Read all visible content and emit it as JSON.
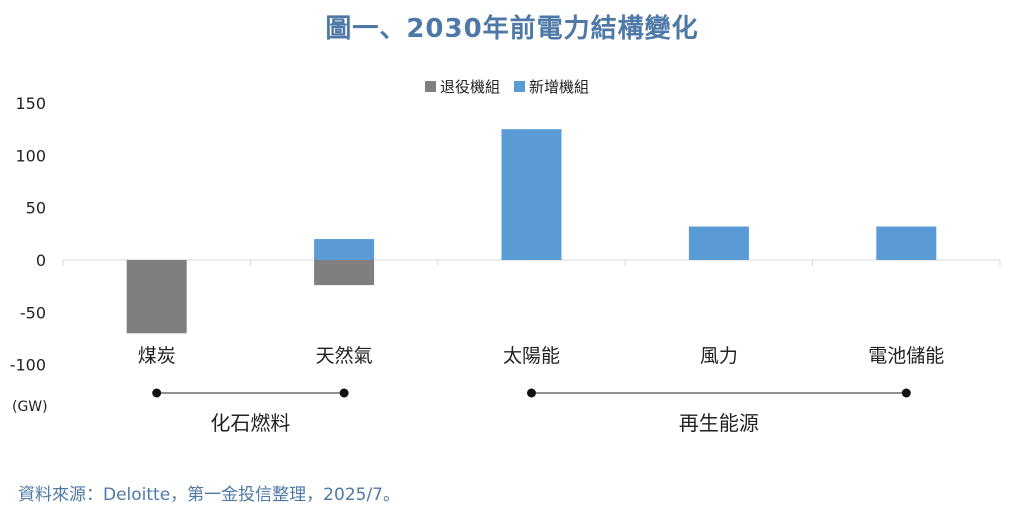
{
  "title": "圖一、2030年前電力結構變化",
  "source_note": "資料來源：Deloitte，第一金投信整理，2025/7。",
  "colors": {
    "retired": "#7f7f7f",
    "added": "#5b9bd5",
    "title": "#4e79a7"
  },
  "chart_data": {
    "type": "bar",
    "categories": [
      "煤炭",
      "天然氣",
      "太陽能",
      "風力",
      "電池儲能"
    ],
    "series": [
      {
        "name": "退役機組",
        "values": [
          -70,
          -24,
          0,
          0,
          0
        ]
      },
      {
        "name": "新增機組",
        "values": [
          0,
          20,
          125,
          32,
          32
        ]
      }
    ],
    "stacked": true,
    "ylim": [
      -100,
      150
    ],
    "yticks": [
      150,
      100,
      50,
      0,
      -50,
      -100
    ],
    "yunit": "(GW)",
    "legend_position": "top",
    "groups": [
      {
        "label": "化石燃料",
        "categories": [
          "煤炭",
          "天然氣"
        ]
      },
      {
        "label": "再生能源",
        "categories": [
          "太陽能",
          "風力",
          "電池儲能"
        ]
      }
    ],
    "grid": false
  }
}
